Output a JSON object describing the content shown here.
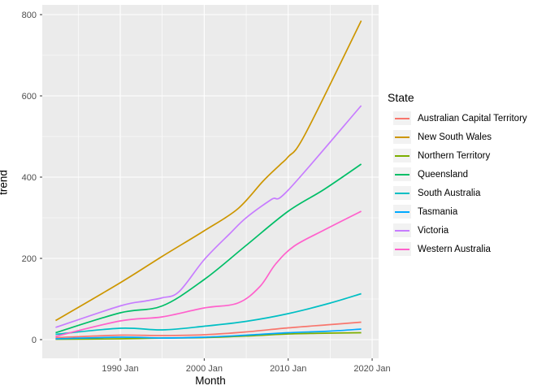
{
  "chart_data": {
    "type": "line",
    "title": "",
    "xlabel": "Month",
    "ylabel": "trend",
    "legend_title": "State",
    "legend_position": "right",
    "grid": true,
    "panel_background": "#EBEBEB",
    "gridline_color": "#FFFFFF",
    "tick_mark_color": "#333333",
    "tick_label_color": "#4D4D4D",
    "xlim": [
      1980.71,
      2020.77
    ],
    "ylim": [
      -46,
      824
    ],
    "x_ticks": [
      {
        "x": 1990,
        "label": "1990 Jan"
      },
      {
        "x": 2000,
        "label": "2000 Jan"
      },
      {
        "x": 2010,
        "label": "2010 Jan"
      },
      {
        "x": 2020,
        "label": "2020 Jan"
      }
    ],
    "x_minor": [
      1985,
      1995,
      2005,
      2015
    ],
    "y_ticks": [
      {
        "y": 0,
        "label": "0"
      },
      {
        "y": 200,
        "label": "200"
      },
      {
        "y": 400,
        "label": "400"
      },
      {
        "y": 600,
        "label": "600"
      },
      {
        "y": 800,
        "label": "800"
      }
    ],
    "y_minor": [
      100,
      300,
      500,
      700
    ],
    "series": [
      {
        "name": "Australian Capital Territory",
        "color": "#F8766D",
        "points": [
          [
            1982.3,
            5
          ],
          [
            1990,
            11
          ],
          [
            1995,
            10
          ],
          [
            2000,
            12
          ],
          [
            2005,
            19
          ],
          [
            2010,
            29
          ],
          [
            2015,
            37
          ],
          [
            2018.7,
            43
          ]
        ]
      },
      {
        "name": "New South Wales",
        "color": "#CD9600",
        "points": [
          [
            1982.3,
            47
          ],
          [
            1990,
            140
          ],
          [
            1995,
            205
          ],
          [
            2000,
            268
          ],
          [
            2004,
            322
          ],
          [
            2007,
            390
          ],
          [
            2009,
            430
          ],
          [
            2010,
            450
          ],
          [
            2012,
            505
          ],
          [
            2018.7,
            785
          ]
        ]
      },
      {
        "name": "Northern Territory",
        "color": "#7CAE00",
        "points": [
          [
            1982.3,
            1
          ],
          [
            1990,
            2
          ],
          [
            1995,
            4
          ],
          [
            2000,
            5
          ],
          [
            2005,
            9
          ],
          [
            2010,
            14
          ],
          [
            2015,
            16
          ],
          [
            2018.7,
            17
          ]
        ]
      },
      {
        "name": "Queensland",
        "color": "#00BE67",
        "points": [
          [
            1982.3,
            17
          ],
          [
            1990,
            66
          ],
          [
            1995,
            83
          ],
          [
            2000,
            148
          ],
          [
            2005,
            232
          ],
          [
            2010,
            316
          ],
          [
            2014.3,
            370
          ],
          [
            2018.7,
            432
          ]
        ]
      },
      {
        "name": "South Australia",
        "color": "#00BFC4",
        "points": [
          [
            1982.3,
            13
          ],
          [
            1990,
            28
          ],
          [
            1995,
            24
          ],
          [
            2000,
            33
          ],
          [
            2005,
            45
          ],
          [
            2010,
            64
          ],
          [
            2015,
            90
          ],
          [
            2018.7,
            113
          ]
        ]
      },
      {
        "name": "Tasmania",
        "color": "#00A9FF",
        "points": [
          [
            1982.3,
            2
          ],
          [
            1990,
            6
          ],
          [
            1995,
            4
          ],
          [
            2000,
            6
          ],
          [
            2005,
            11
          ],
          [
            2010,
            17
          ],
          [
            2015,
            21
          ],
          [
            2018.7,
            26
          ]
        ]
      },
      {
        "name": "Victoria",
        "color": "#C77CFF",
        "points": [
          [
            1982.3,
            30
          ],
          [
            1990,
            83
          ],
          [
            1993,
            95
          ],
          [
            1995,
            103
          ],
          [
            1997,
            118
          ],
          [
            2000,
            197
          ],
          [
            2003,
            260
          ],
          [
            2005,
            300
          ],
          [
            2008,
            345
          ],
          [
            2010,
            368
          ],
          [
            2018.7,
            576
          ]
        ]
      },
      {
        "name": "Western Australia",
        "color": "#FF61CC",
        "points": [
          [
            1982.3,
            8
          ],
          [
            1990,
            46
          ],
          [
            1995,
            56
          ],
          [
            2000,
            78
          ],
          [
            2004,
            90
          ],
          [
            2006.6,
            130
          ],
          [
            2008.5,
            186
          ],
          [
            2010.7,
            230
          ],
          [
            2014.3,
            270
          ],
          [
            2018.7,
            316
          ]
        ]
      }
    ]
  }
}
